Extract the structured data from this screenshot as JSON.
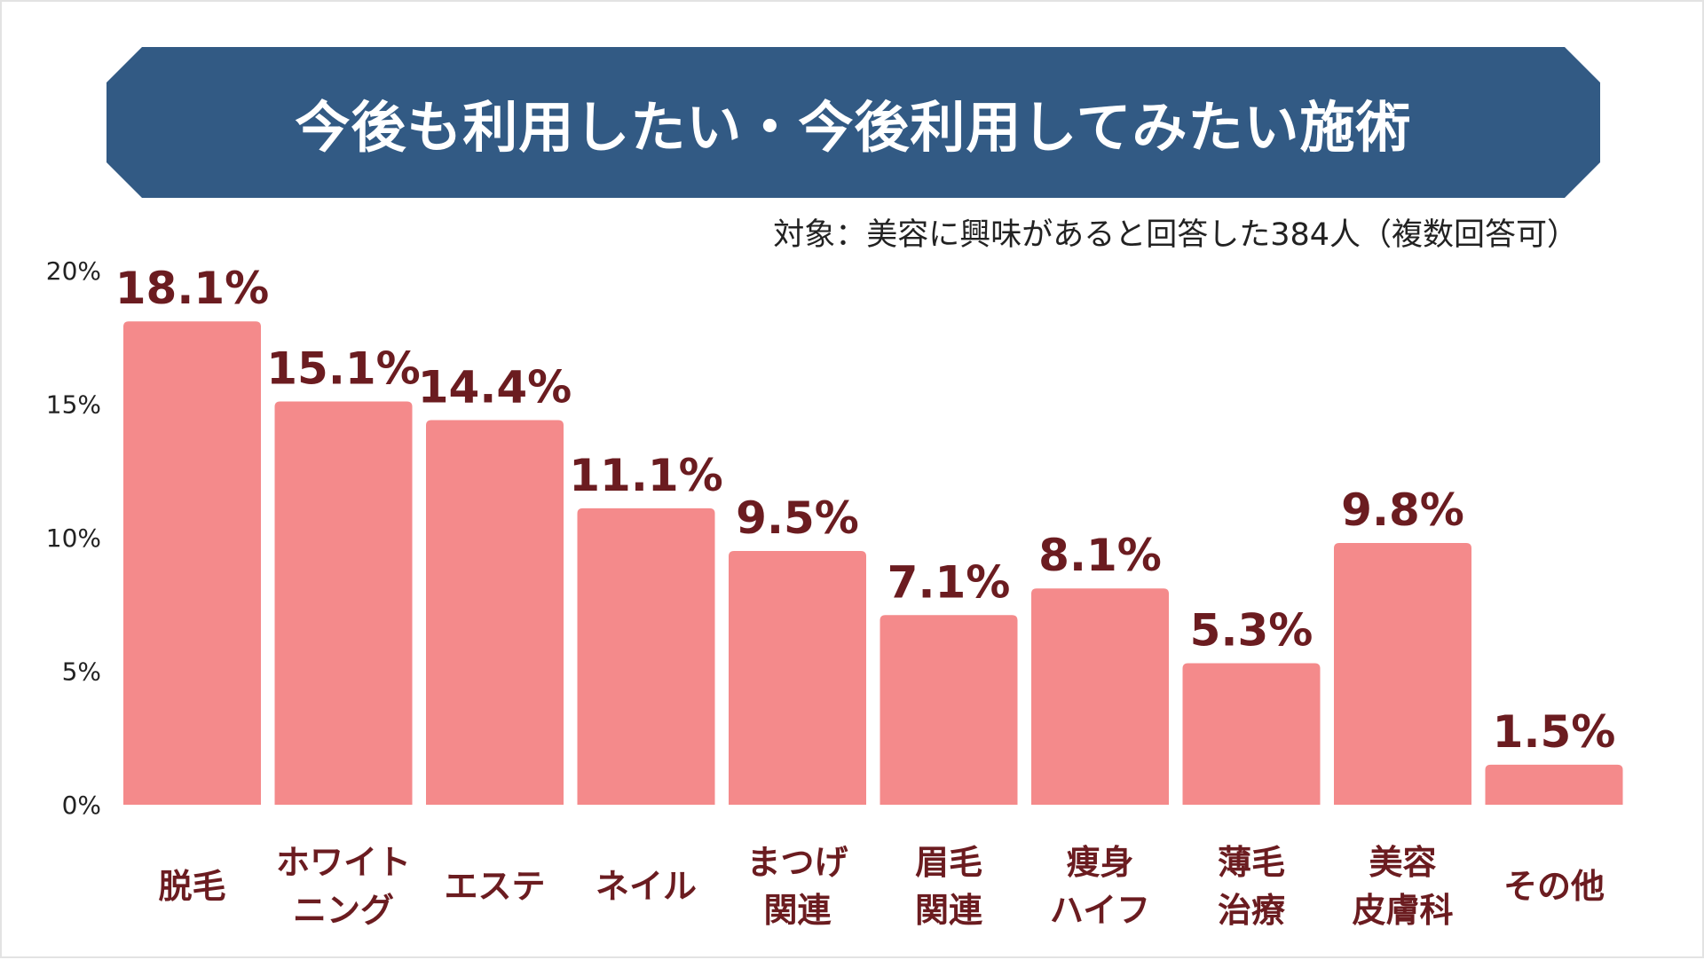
{
  "header": {
    "title": "今後も利用したい・今後利用してみたい施術",
    "subtitle": "対象：美容に興味があると回答した384人（複数回答可）"
  },
  "colors": {
    "banner": "#325a84",
    "bar": "#f48a8b",
    "value_label": "#6b1c20",
    "category_label": "#6b1c20"
  },
  "chart_data": {
    "type": "bar",
    "title": "今後も利用したい・今後利用してみたい施術",
    "subtitle": "対象：美容に興味があると回答した384人（複数回答可）",
    "categories": [
      [
        "脱毛"
      ],
      [
        "ホワイト",
        "ニング"
      ],
      [
        "エステ"
      ],
      [
        "ネイル"
      ],
      [
        "まつげ",
        "関連"
      ],
      [
        "眉毛",
        "関連"
      ],
      [
        "痩身",
        "ハイフ"
      ],
      [
        "薄毛",
        "治療"
      ],
      [
        "美容",
        "皮膚科"
      ],
      [
        "その他"
      ]
    ],
    "values": [
      18.1,
      15.1,
      14.4,
      11.1,
      9.5,
      7.1,
      8.1,
      5.3,
      9.8,
      1.5
    ],
    "value_labels": [
      "18.1%",
      "15.1%",
      "14.4%",
      "11.1%",
      "9.5%",
      "7.1%",
      "8.1%",
      "5.3%",
      "9.8%",
      "1.5%"
    ],
    "y_ticks": [
      0,
      5,
      10,
      15,
      20
    ],
    "y_tick_labels": [
      "0%",
      "5%",
      "10%",
      "15%",
      "20%"
    ],
    "ylim": [
      0,
      20
    ],
    "grid": false,
    "legend": "none"
  }
}
